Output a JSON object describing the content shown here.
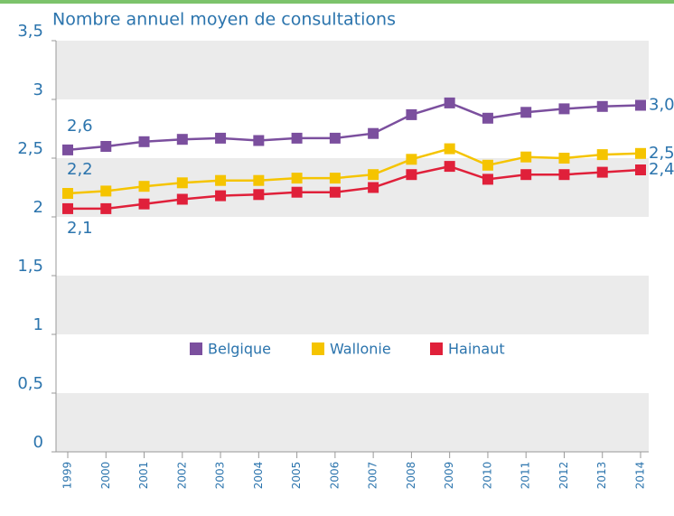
{
  "chart_data": {
    "type": "line",
    "title": "Nombre annuel moyen de consultations",
    "categories": [
      "1999",
      "2000",
      "2001",
      "2002",
      "2003",
      "2004",
      "2005",
      "2006",
      "2007",
      "2008",
      "2009",
      "2010",
      "2011",
      "2012",
      "2013",
      "2014"
    ],
    "series": [
      {
        "name": "Belgique",
        "color": "#7b4f9e",
        "values": [
          2.57,
          2.6,
          2.64,
          2.66,
          2.67,
          2.65,
          2.67,
          2.67,
          2.71,
          2.87,
          2.97,
          2.84,
          2.89,
          2.92,
          2.94,
          2.95
        ],
        "value_labels": [
          "2,6",
          null,
          null,
          null,
          null,
          null,
          null,
          null,
          null,
          null,
          null,
          null,
          null,
          null,
          null,
          "3,0"
        ]
      },
      {
        "name": "Wallonie",
        "color": "#f5c400",
        "values": [
          2.2,
          2.22,
          2.26,
          2.29,
          2.31,
          2.31,
          2.33,
          2.33,
          2.36,
          2.49,
          2.58,
          2.44,
          2.51,
          2.5,
          2.53,
          2.54
        ],
        "value_labels": [
          "2,2",
          null,
          null,
          null,
          null,
          null,
          null,
          null,
          null,
          null,
          null,
          null,
          null,
          null,
          null,
          "2,5"
        ]
      },
      {
        "name": "Hainaut",
        "color": "#e0203a",
        "values": [
          2.07,
          2.07,
          2.11,
          2.15,
          2.18,
          2.19,
          2.21,
          2.21,
          2.25,
          2.36,
          2.43,
          2.32,
          2.36,
          2.36,
          2.38,
          2.4
        ],
        "value_labels": [
          "2,1",
          null,
          null,
          null,
          null,
          null,
          null,
          null,
          null,
          null,
          null,
          null,
          null,
          null,
          null,
          "2,4"
        ]
      }
    ],
    "ylim": [
      0,
      3.5
    ],
    "yticks": [
      0,
      {
        "value": 0.5,
        "label": "0,5"
      },
      1,
      {
        "value": 1.5,
        "label": "1,5"
      },
      2,
      {
        "value": 2.5,
        "label": "2,5"
      },
      3,
      {
        "value": 3.5,
        "label": "3,5"
      }
    ],
    "grid": true
  }
}
